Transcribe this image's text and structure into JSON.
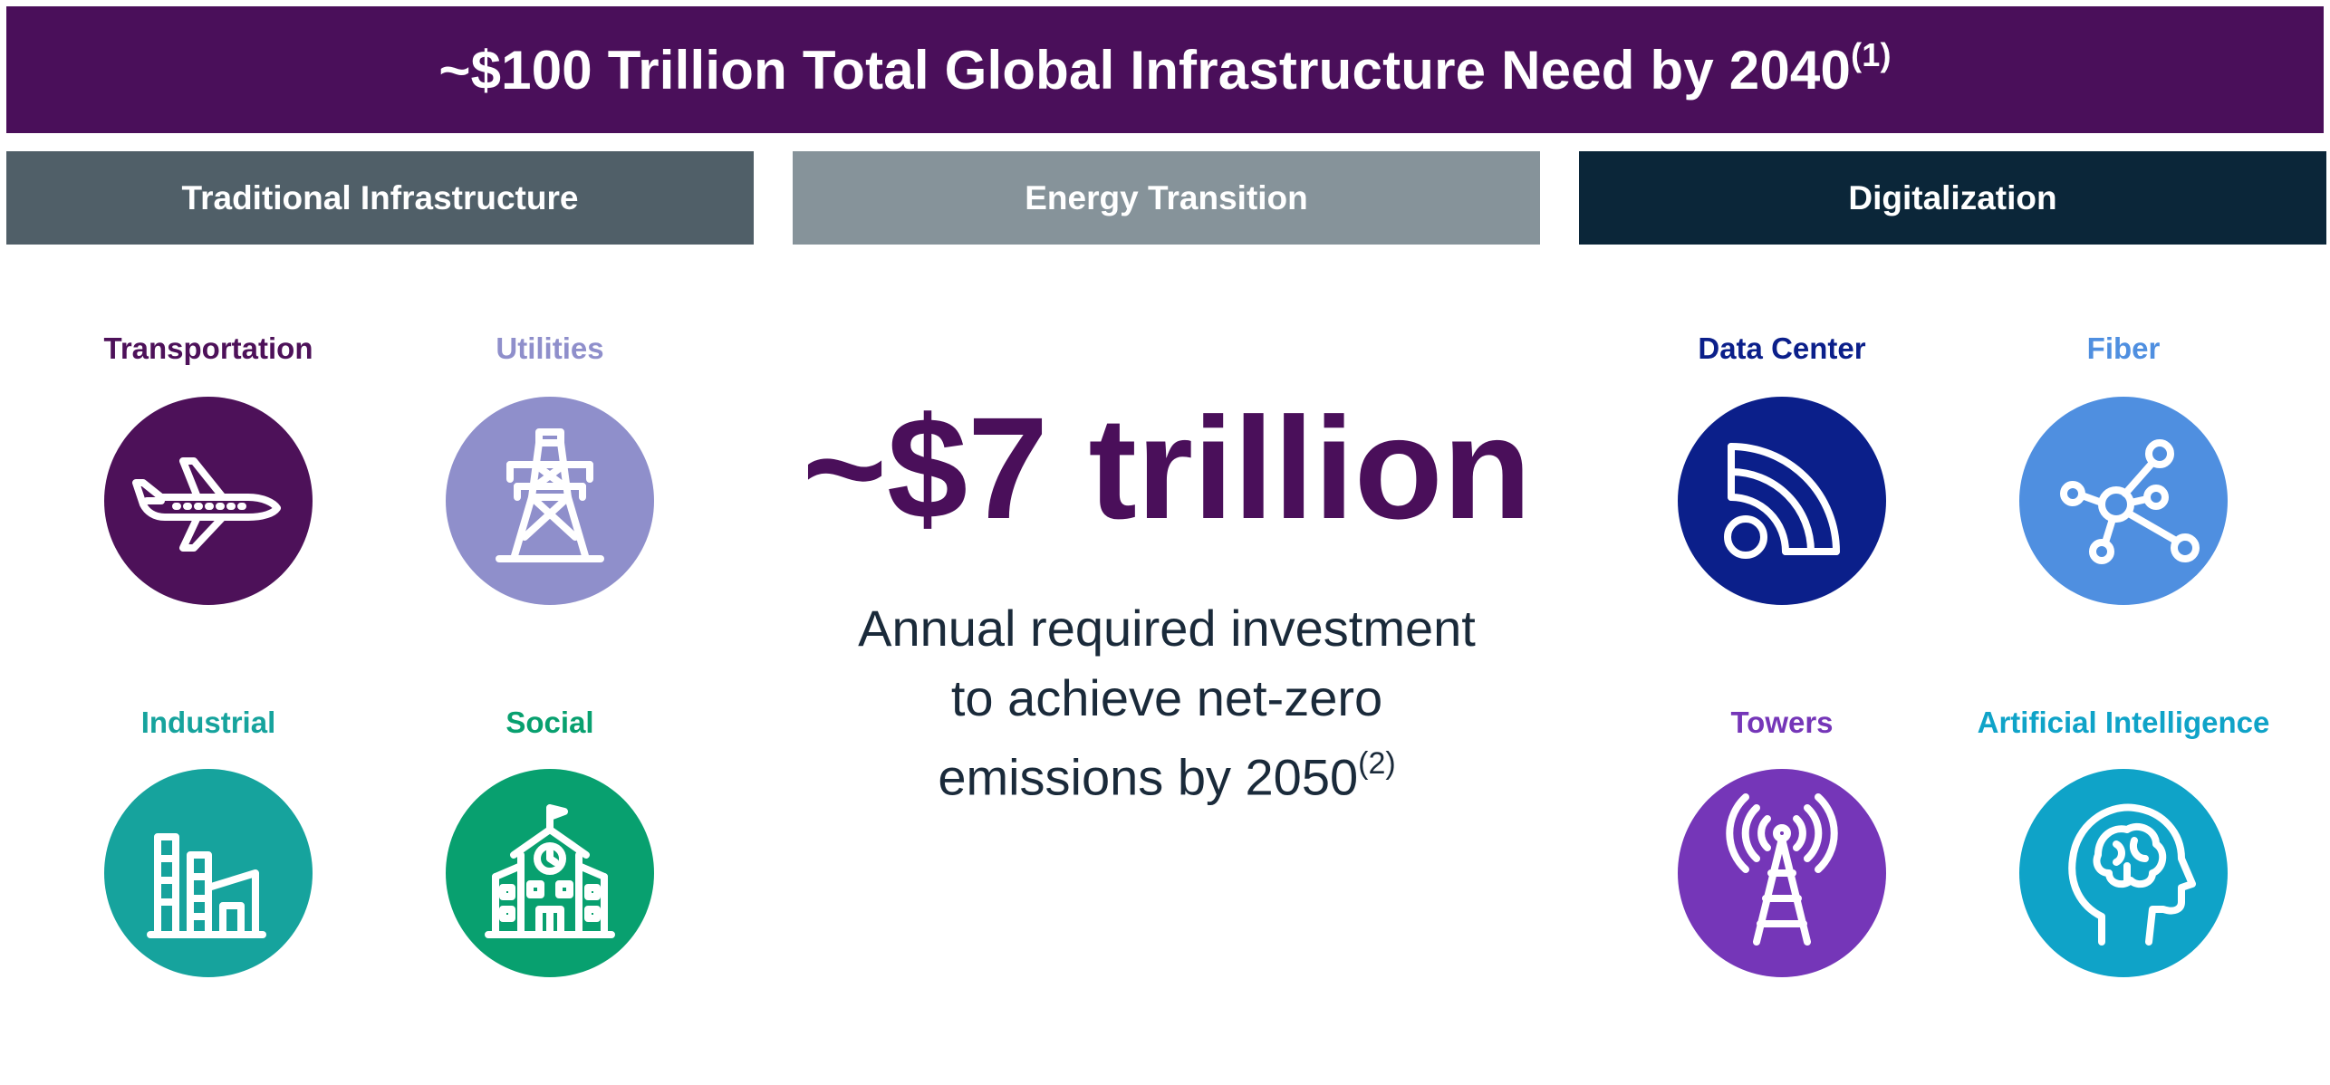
{
  "banner": {
    "title": "~$100 Trillion Total Global Infrastructure Need by 2040",
    "footnote": "(1)"
  },
  "sections": {
    "traditional": {
      "label": "Traditional Infrastructure"
    },
    "energy": {
      "label": "Energy Transition"
    },
    "digital": {
      "label": "Digitalization"
    }
  },
  "traditional_items": [
    {
      "label": "Transportation",
      "icon": "airplane-icon"
    },
    {
      "label": "Utilities",
      "icon": "power-tower-icon"
    },
    {
      "label": "Industrial",
      "icon": "factory-icon"
    },
    {
      "label": "Social",
      "icon": "school-building-icon"
    }
  ],
  "energy": {
    "amount": "~$7 trillion",
    "caption_lines": [
      "Annual required investment",
      "to achieve net-zero",
      "emissions by 2050"
    ],
    "footnote": "(2)"
  },
  "digital_items": [
    {
      "label": "Data Center",
      "icon": "signal-waves-icon"
    },
    {
      "label": "Fiber",
      "icon": "network-nodes-icon"
    },
    {
      "label": "Towers",
      "icon": "antenna-tower-icon"
    },
    {
      "label": "Artificial Intelligence",
      "icon": "brain-head-icon"
    }
  ],
  "colors": {
    "banner": "#4a0f5a",
    "traditional_header": "#505f68",
    "energy_header": "#86939a",
    "digital_header": "#0b2639",
    "transportation": "#4d1159",
    "utilities": "#8f8fcb",
    "industrial": "#16a39d",
    "social": "#08a06f",
    "data_center": "#0b1f8a",
    "fiber": "#4f8fe0",
    "towers": "#7536b8",
    "artificial_intelligence": "#0fa3c8",
    "energy_amount": "#4a0f5a"
  }
}
